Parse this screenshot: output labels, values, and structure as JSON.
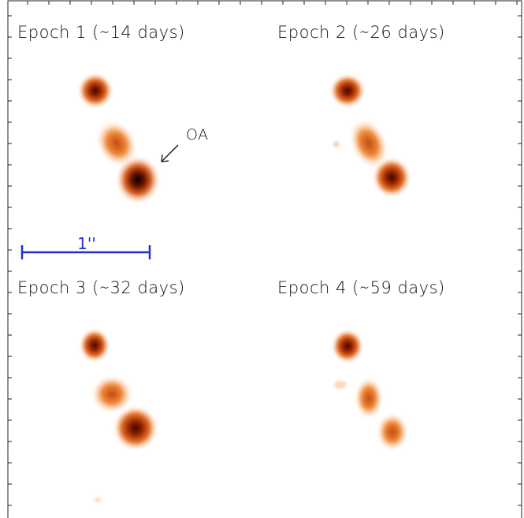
{
  "panels": [
    {
      "label": "Epoch 1 (∼14 days)"
    },
    {
      "label": "Epoch 2 (∼26 days)"
    },
    {
      "label": "Epoch 3 (∼32 days)"
    },
    {
      "label": "Epoch 4 (∼59 days)"
    }
  ],
  "annotation": "OA",
  "scale_bar": "1''"
}
